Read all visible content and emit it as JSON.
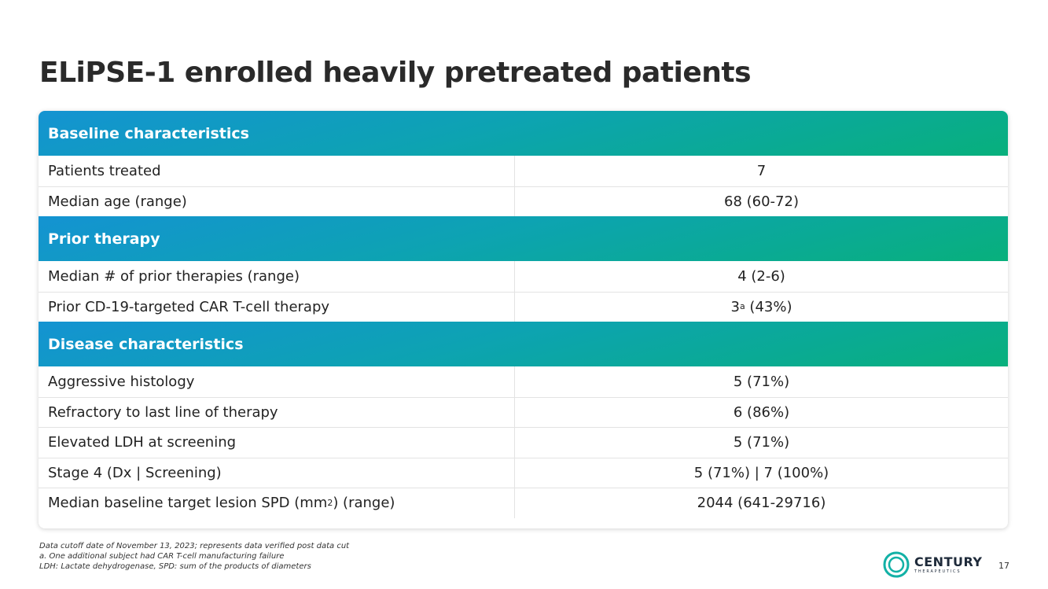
{
  "title": "ELiPSE-1 enrolled heavily pretreated patients",
  "sections": {
    "baseline": {
      "header": "Baseline characteristics",
      "rows": [
        {
          "label": "Patients treated",
          "value": "7"
        },
        {
          "label": "Median age (range)",
          "value": "68 (60-72)"
        }
      ]
    },
    "prior": {
      "header": "Prior therapy",
      "rows": [
        {
          "label": "Median # of prior therapies (range)",
          "value": "4 (2-6)"
        },
        {
          "label": "Prior CD-19-targeted CAR T-cell therapy",
          "value_pre": "3",
          "value_sup": "a",
          "value_post": " (43%)"
        }
      ]
    },
    "disease": {
      "header": "Disease characteristics",
      "rows": [
        {
          "label": "Aggressive histology",
          "value": "5 (71%)"
        },
        {
          "label": "Refractory to last line of therapy",
          "value": "6 (86%)"
        },
        {
          "label": "Elevated LDH at screening",
          "value": "5 (71%)"
        },
        {
          "label": "Stage 4 (Dx | Screening)",
          "value": "5 (71%) | 7 (100%)"
        },
        {
          "label_pre": "Median baseline target lesion SPD (mm",
          "label_sup": "2",
          "label_post": ") (range)",
          "value": "2044 (641-29716)"
        }
      ]
    }
  },
  "footnotes": [
    "Data cutoff date of November 13, 2023; represents data verified post data cut",
    "a. One additional subject had CAR T-cell manufacturing failure",
    "LDH: Lactate dehydrogenase, SPD: sum of the products of diameters"
  ],
  "logo": {
    "name": "CENTURY",
    "subtitle": "THERAPEUTICS"
  },
  "page_number": "17",
  "colors": {
    "header_gradient_start": "#1493d2",
    "header_gradient_end": "#08b07c",
    "logo_teal": "#12b1a6"
  }
}
